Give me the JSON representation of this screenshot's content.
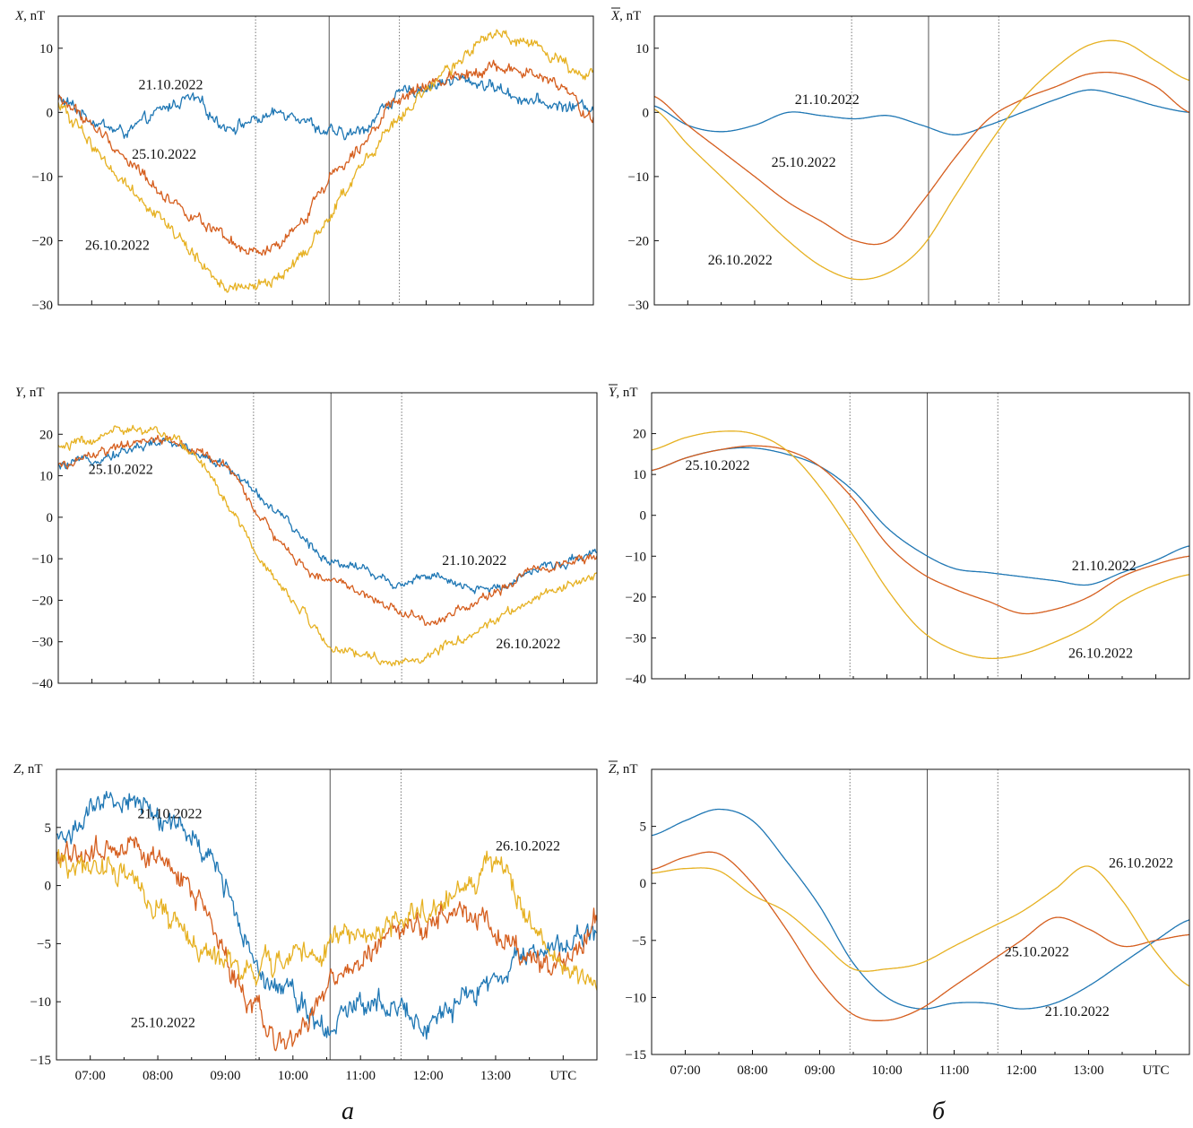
{
  "colors": {
    "21.10.2022": "#1f77b4",
    "25.10.2022": "#d55e1e",
    "26.10.2022": "#e6b122"
  },
  "panel_letters": [
    "а",
    "б"
  ],
  "chart_data": [
    {
      "id": "X-raw",
      "type": "line",
      "ylabel_var": "X",
      "ylabel_overline": false,
      "ylabel_unit": ", nT",
      "xlim": [
        6.5,
        14.5
      ],
      "ylim": [
        -30,
        15
      ],
      "yticks": [
        10,
        0,
        -10,
        -20,
        -30
      ],
      "ytick_labels": [
        "10",
        "0",
        "−10",
        "−20",
        "−30"
      ],
      "xticks": [
        7,
        8,
        9,
        10,
        11,
        12,
        13,
        14
      ],
      "xtick_labels": [],
      "vlines": [
        {
          "x": 9.45,
          "style": "dot"
        },
        {
          "x": 10.55,
          "style": "solid"
        },
        {
          "x": 11.6,
          "style": "dot"
        }
      ],
      "noise": 1.0,
      "series": [
        {
          "name": "21.10.2022",
          "x": [
            6.5,
            7.0,
            7.5,
            8.0,
            8.5,
            9.0,
            9.5,
            10.0,
            10.5,
            11.0,
            11.5,
            12.0,
            12.5,
            13.0,
            13.5,
            14.0,
            14.5
          ],
          "y": [
            2,
            -1,
            -3,
            0,
            2,
            -2,
            -1,
            0,
            -3,
            -3,
            2,
            4,
            5,
            4,
            2,
            1,
            1
          ]
        },
        {
          "name": "25.10.2022",
          "x": [
            6.5,
            7.0,
            7.5,
            8.0,
            8.5,
            9.0,
            9.5,
            10.0,
            10.5,
            11.0,
            11.5,
            12.0,
            12.5,
            13.0,
            13.5,
            14.0,
            14.5
          ],
          "y": [
            2,
            -2,
            -7,
            -12,
            -16,
            -20,
            -22,
            -19,
            -11,
            -5,
            1,
            4,
            6,
            7,
            6,
            4,
            -1
          ]
        },
        {
          "name": "26.10.2022",
          "x": [
            6.5,
            7.0,
            7.5,
            8.0,
            8.5,
            9.0,
            9.5,
            10.0,
            10.5,
            11.0,
            11.5,
            12.0,
            12.5,
            13.0,
            13.5,
            14.0,
            14.5
          ],
          "y": [
            1,
            -5,
            -11,
            -16,
            -22,
            -27,
            -27,
            -24,
            -17,
            -9,
            -2,
            3,
            8,
            12,
            11,
            8,
            6
          ]
        }
      ],
      "annotations": [
        {
          "text": "21.10.2022",
          "x": 7.7,
          "y": 3.6
        },
        {
          "text": "25.10.2022",
          "x": 7.6,
          "y": -7.2
        },
        {
          "text": "26.10.2022",
          "x": 6.9,
          "y": -21.4
        }
      ]
    },
    {
      "id": "X-mean",
      "type": "line",
      "ylabel_var": "X",
      "ylabel_overline": true,
      "ylabel_unit": ", nT",
      "xlim": [
        6.5,
        14.5
      ],
      "ylim": [
        -30,
        15
      ],
      "yticks": [
        10,
        0,
        -10,
        -20,
        -30
      ],
      "ytick_labels": [
        "10",
        "0",
        "−10",
        "−20",
        "−30"
      ],
      "xticks": [
        7,
        8,
        9,
        10,
        11,
        12,
        13,
        14
      ],
      "xtick_labels": [],
      "vlines": [
        {
          "x": 9.45,
          "style": "dot"
        },
        {
          "x": 10.6,
          "style": "solid"
        },
        {
          "x": 11.65,
          "style": "dot"
        }
      ],
      "noise": 0,
      "series": [
        {
          "name": "21.10.2022",
          "x": [
            6.5,
            7.0,
            7.5,
            8.0,
            8.5,
            9.0,
            9.5,
            10.0,
            10.5,
            11.0,
            11.5,
            12.0,
            12.5,
            13.0,
            13.5,
            14.0,
            14.5
          ],
          "y": [
            1,
            -2,
            -3,
            -2,
            0,
            -0.5,
            -1,
            -0.5,
            -2,
            -3.5,
            -2,
            0,
            2,
            3.5,
            2.5,
            1,
            0
          ]
        },
        {
          "name": "25.10.2022",
          "x": [
            6.5,
            7.0,
            7.5,
            8.0,
            8.5,
            9.0,
            9.5,
            10.0,
            10.5,
            11.0,
            11.5,
            12.0,
            12.5,
            13.0,
            13.5,
            14.0,
            14.5
          ],
          "y": [
            2.5,
            -2,
            -6,
            -10,
            -14,
            -17,
            -20,
            -20,
            -14,
            -7,
            -1,
            2,
            4,
            6,
            6,
            4,
            0
          ]
        },
        {
          "name": "26.10.2022",
          "x": [
            6.5,
            7.0,
            7.5,
            8.0,
            8.5,
            9.0,
            9.5,
            10.0,
            10.5,
            11.0,
            11.5,
            12.0,
            12.5,
            13.0,
            13.5,
            14.0,
            14.5
          ],
          "y": [
            0.5,
            -5,
            -10,
            -15,
            -20,
            -24,
            -26,
            -25,
            -21,
            -13,
            -5,
            2,
            7,
            10.5,
            11,
            8,
            5
          ]
        }
      ],
      "annotations": [
        {
          "text": "21.10.2022",
          "x": 8.6,
          "y": 1.3
        },
        {
          "text": "25.10.2022",
          "x": 8.25,
          "y": -8.5
        },
        {
          "text": "26.10.2022",
          "x": 7.3,
          "y": -23.7
        }
      ]
    },
    {
      "id": "Y-raw",
      "type": "line",
      "ylabel_var": "Y",
      "ylabel_overline": false,
      "ylabel_unit": ", nT",
      "xlim": [
        6.5,
        14.5
      ],
      "ylim": [
        -40,
        30
      ],
      "yticks": [
        20,
        10,
        0,
        -10,
        -20,
        -30,
        -40
      ],
      "ytick_labels": [
        "20",
        "10",
        "0",
        "−10",
        "−20",
        "−30",
        "−40"
      ],
      "xticks": [
        7,
        8,
        9,
        10,
        11,
        12,
        13,
        14
      ],
      "xtick_labels": [],
      "vlines": [
        {
          "x": 9.4,
          "style": "dot"
        },
        {
          "x": 10.55,
          "style": "solid"
        },
        {
          "x": 11.6,
          "style": "dot"
        }
      ],
      "noise": 1.2,
      "series": [
        {
          "name": "21.10.2022",
          "x": [
            6.5,
            7.0,
            7.5,
            8.0,
            8.5,
            9.0,
            9.5,
            10.0,
            10.5,
            11.0,
            11.5,
            12.0,
            12.5,
            13.0,
            13.5,
            14.0,
            14.5
          ],
          "y": [
            12,
            14,
            16,
            18,
            16,
            12,
            5,
            -3,
            -10,
            -12,
            -16,
            -14,
            -17,
            -17,
            -13,
            -11,
            -8
          ]
        },
        {
          "name": "25.10.2022",
          "x": [
            6.5,
            7.0,
            7.5,
            8.0,
            8.5,
            9.0,
            9.5,
            10.0,
            10.5,
            11.0,
            11.5,
            12.0,
            12.5,
            13.0,
            13.5,
            14.0,
            14.5
          ],
          "y": [
            12,
            15,
            17,
            19,
            16,
            12,
            0,
            -10,
            -15,
            -18,
            -22,
            -25,
            -22,
            -18,
            -13,
            -11,
            -10
          ]
        },
        {
          "name": "26.10.2022",
          "x": [
            6.5,
            7.0,
            7.5,
            8.0,
            8.5,
            9.0,
            9.5,
            10.0,
            10.5,
            11.0,
            11.5,
            12.0,
            12.5,
            13.0,
            13.5,
            14.0,
            14.5
          ],
          "y": [
            17,
            19,
            21,
            20,
            16,
            4,
            -10,
            -20,
            -30,
            -33,
            -35,
            -33,
            -29,
            -25,
            -20,
            -17,
            -14
          ]
        }
      ],
      "annotations": [
        {
          "text": "25.10.2022",
          "x": 6.95,
          "y": 10.4
        },
        {
          "text": "21.10.2022",
          "x": 12.2,
          "y": -11.5
        },
        {
          "text": "26.10.2022",
          "x": 13.0,
          "y": -31.6
        }
      ]
    },
    {
      "id": "Y-mean",
      "type": "line",
      "ylabel_var": "Y",
      "ylabel_overline": true,
      "ylabel_unit": ", nT",
      "xlim": [
        6.5,
        14.5
      ],
      "ylim": [
        -40,
        30
      ],
      "yticks": [
        20,
        10,
        0,
        -10,
        -20,
        -30,
        -40
      ],
      "ytick_labels": [
        "20",
        "10",
        "0",
        "−10",
        "−20",
        "−30",
        "−40"
      ],
      "xticks": [
        7,
        8,
        9,
        10,
        11,
        12,
        13,
        14
      ],
      "xtick_labels": [],
      "vlines": [
        {
          "x": 9.45,
          "style": "dot"
        },
        {
          "x": 10.6,
          "style": "solid"
        },
        {
          "x": 11.65,
          "style": "dot"
        }
      ],
      "noise": 0,
      "series": [
        {
          "name": "21.10.2022",
          "x": [
            6.5,
            7.0,
            7.5,
            8.0,
            8.5,
            9.0,
            9.5,
            10.0,
            10.5,
            11.0,
            11.5,
            12.0,
            12.5,
            13.0,
            13.5,
            14.0,
            14.5
          ],
          "y": [
            11,
            14,
            16,
            16.5,
            15,
            12,
            6,
            -3,
            -9,
            -13,
            -14,
            -15,
            -16,
            -17,
            -14,
            -11,
            -7.5
          ]
        },
        {
          "name": "25.10.2022",
          "x": [
            6.5,
            7.0,
            7.5,
            8.0,
            8.5,
            9.0,
            9.5,
            10.0,
            10.5,
            11.0,
            11.5,
            12.0,
            12.5,
            13.0,
            13.5,
            14.0,
            14.5
          ],
          "y": [
            11,
            14,
            16,
            17,
            16,
            12,
            4,
            -7,
            -14,
            -18,
            -21,
            -24,
            -23,
            -20,
            -15,
            -12,
            -10
          ]
        },
        {
          "name": "26.10.2022",
          "x": [
            6.5,
            7.0,
            7.5,
            8.0,
            8.5,
            9.0,
            9.5,
            10.0,
            10.5,
            11.0,
            11.5,
            12.0,
            12.5,
            13.0,
            13.5,
            14.0,
            14.5
          ],
          "y": [
            16,
            19,
            20.5,
            20,
            16,
            7,
            -5,
            -18,
            -28,
            -33,
            -35,
            -34,
            -31,
            -27,
            -21,
            -17,
            -14.5
          ]
        }
      ],
      "annotations": [
        {
          "text": "25.10.2022",
          "x": 7.0,
          "y": 11.1
        },
        {
          "text": "21.10.2022",
          "x": 12.75,
          "y": -13.5
        },
        {
          "text": "26.10.2022",
          "x": 12.7,
          "y": -34.8
        }
      ]
    },
    {
      "id": "Z-raw",
      "type": "line",
      "ylabel_var": "Z",
      "ylabel_overline": false,
      "ylabel_unit": ", nT",
      "xlim": [
        6.5,
        14.5
      ],
      "ylim": [
        -15,
        10
      ],
      "yticks": [
        5,
        0,
        -5,
        -10,
        -15
      ],
      "ytick_labels": [
        "5",
        "0",
        "−5",
        "−10",
        "−15"
      ],
      "xticks": [
        7,
        8,
        9,
        10,
        11,
        12,
        13,
        14
      ],
      "xtick_labels": [
        "07:00",
        "08:00",
        "09:00",
        "10:00",
        "11:00",
        "12:00",
        "13:00",
        "UTC"
      ],
      "vlines": [
        {
          "x": 9.45,
          "style": "dot"
        },
        {
          "x": 10.55,
          "style": "solid"
        },
        {
          "x": 11.6,
          "style": "dot"
        }
      ],
      "noise": 1.1,
      "series": [
        {
          "name": "21.10.2022",
          "x": [
            6.5,
            7.0,
            7.5,
            8.0,
            8.5,
            9.0,
            9.5,
            10.0,
            10.5,
            11.0,
            11.5,
            12.0,
            12.5,
            13.0,
            13.5,
            14.0,
            14.5
          ],
          "y": [
            4,
            6,
            7.5,
            6,
            4,
            0,
            -7,
            -9,
            -12,
            -10,
            -10,
            -12,
            -10,
            -8,
            -6,
            -5,
            -4
          ]
        },
        {
          "name": "25.10.2022",
          "x": [
            6.5,
            7.0,
            7.5,
            8.0,
            8.5,
            9.0,
            9.5,
            10.0,
            10.5,
            11.0,
            11.5,
            12.0,
            12.5,
            13.0,
            13.5,
            14.0,
            14.5
          ],
          "y": [
            2,
            3,
            3,
            2,
            0,
            -6,
            -11,
            -13,
            -9,
            -7,
            -4,
            -3,
            -2,
            -4,
            -6,
            -7,
            -3
          ]
        },
        {
          "name": "26.10.2022",
          "x": [
            6.5,
            7.0,
            7.5,
            8.0,
            8.5,
            9.0,
            9.5,
            10.0,
            10.5,
            11.0,
            11.5,
            12.0,
            12.5,
            13.0,
            13.5,
            14.0,
            14.5
          ],
          "y": [
            2,
            1.5,
            1,
            -2,
            -5,
            -7,
            -7,
            -6,
            -5,
            -4,
            -3,
            -2,
            0,
            1.5,
            -3,
            -7,
            -9
          ]
        }
      ],
      "annotations": [
        {
          "text": "21.10.2022",
          "x": 7.7,
          "y": 5.8
        },
        {
          "text": "26.10.2022",
          "x": 13.0,
          "y": 3.0
        },
        {
          "text": "25.10.2022",
          "x": 7.6,
          "y": -12.2
        }
      ]
    },
    {
      "id": "Z-mean",
      "type": "line",
      "ylabel_var": "Z",
      "ylabel_overline": true,
      "ylabel_unit": ", nT",
      "xlim": [
        6.5,
        14.5
      ],
      "ylim": [
        -15,
        10
      ],
      "yticks": [
        5,
        0,
        -5,
        -10,
        -15
      ],
      "ytick_labels": [
        "5",
        "0",
        "−5",
        "−10",
        "−15"
      ],
      "xticks": [
        7,
        8,
        9,
        10,
        11,
        12,
        13,
        14
      ],
      "xtick_labels": [
        "07:00",
        "08:00",
        "09:00",
        "10:00",
        "11:00",
        "12:00",
        "13:00",
        "UTC"
      ],
      "vlines": [
        {
          "x": 9.45,
          "style": "dot"
        },
        {
          "x": 10.6,
          "style": "solid"
        },
        {
          "x": 11.65,
          "style": "dot"
        }
      ],
      "noise": 0,
      "series": [
        {
          "name": "21.10.2022",
          "x": [
            6.5,
            7.0,
            7.5,
            8.0,
            8.5,
            9.0,
            9.5,
            10.0,
            10.5,
            11.0,
            11.5,
            12.0,
            12.5,
            13.0,
            13.5,
            14.0,
            14.5
          ],
          "y": [
            4.2,
            5.5,
            6.5,
            5.5,
            2,
            -2,
            -7,
            -10,
            -11,
            -10.5,
            -10.5,
            -11,
            -10.5,
            -9,
            -7,
            -5,
            -3.2
          ]
        },
        {
          "name": "25.10.2022",
          "x": [
            6.5,
            7.0,
            7.5,
            8.0,
            8.5,
            9.0,
            9.5,
            10.0,
            10.5,
            11.0,
            11.5,
            12.0,
            12.5,
            13.0,
            13.5,
            14.0,
            14.5
          ],
          "y": [
            1.2,
            2.3,
            2.6,
            0,
            -4,
            -8.5,
            -11.5,
            -12,
            -11,
            -9,
            -7,
            -5,
            -3,
            -4,
            -5.5,
            -5,
            -4.5
          ]
        },
        {
          "name": "26.10.2022",
          "x": [
            6.5,
            7.0,
            7.5,
            8.0,
            8.5,
            9.0,
            9.5,
            10.0,
            10.5,
            11.0,
            11.5,
            12.0,
            12.5,
            13.0,
            13.5,
            14.0,
            14.5
          ],
          "y": [
            0.9,
            1.3,
            1.1,
            -1,
            -2.5,
            -5,
            -7.5,
            -7.5,
            -7,
            -5.5,
            -4,
            -2.5,
            -0.5,
            1.5,
            -1.5,
            -6,
            -9
          ]
        }
      ],
      "annotations": [
        {
          "text": "26.10.2022",
          "x": 13.3,
          "y": 1.4
        },
        {
          "text": "25.10.2022",
          "x": 11.75,
          "y": -6.4
        },
        {
          "text": "21.10.2022",
          "x": 12.35,
          "y": -11.6
        }
      ]
    }
  ]
}
